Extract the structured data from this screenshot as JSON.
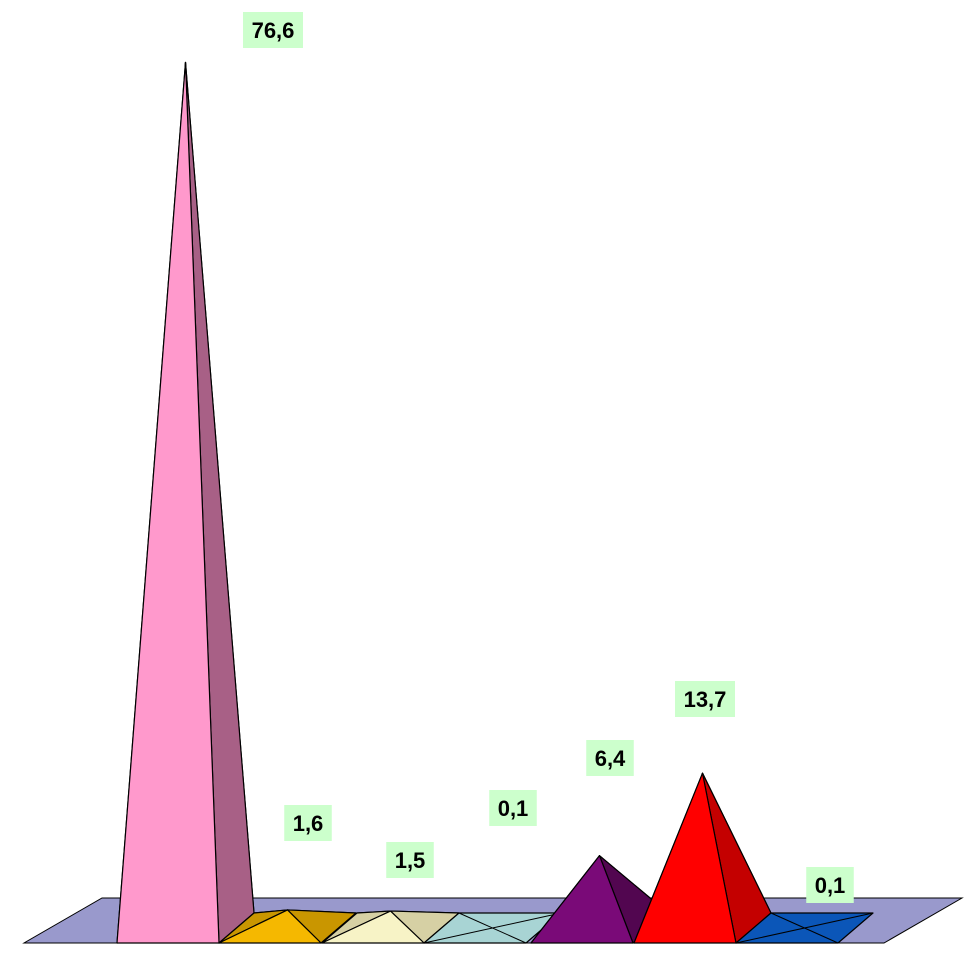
{
  "chart_data": {
    "type": "bar",
    "style": "3d-pyramid",
    "categories": [
      "",
      "",
      "",
      "",
      "",
      "",
      ""
    ],
    "values": [
      76.6,
      1.6,
      1.5,
      0.1,
      6.4,
      13.7,
      0.1
    ],
    "data_labels": [
      "76,6",
      "1,6",
      "1,5",
      "0,1",
      "6,4",
      "13,7",
      "0,1"
    ],
    "colors": [
      "#FF99CC",
      "#F5B800",
      "#F7F3C6",
      "#A8D4D4",
      "#7A0A78",
      "#FF0000",
      "#0B56B8"
    ],
    "side_colors": [
      "#A86086",
      "#C99600",
      "#D6D0A4",
      "#84B0B0",
      "#520650",
      "#C40000",
      "#063E8A"
    ],
    "floor_color": "#9999CC",
    "label_background": "#CCFFCC",
    "title": "",
    "xlabel": "",
    "ylabel": "",
    "ylim": [
      0,
      80
    ],
    "grid": false,
    "legend": "none"
  }
}
